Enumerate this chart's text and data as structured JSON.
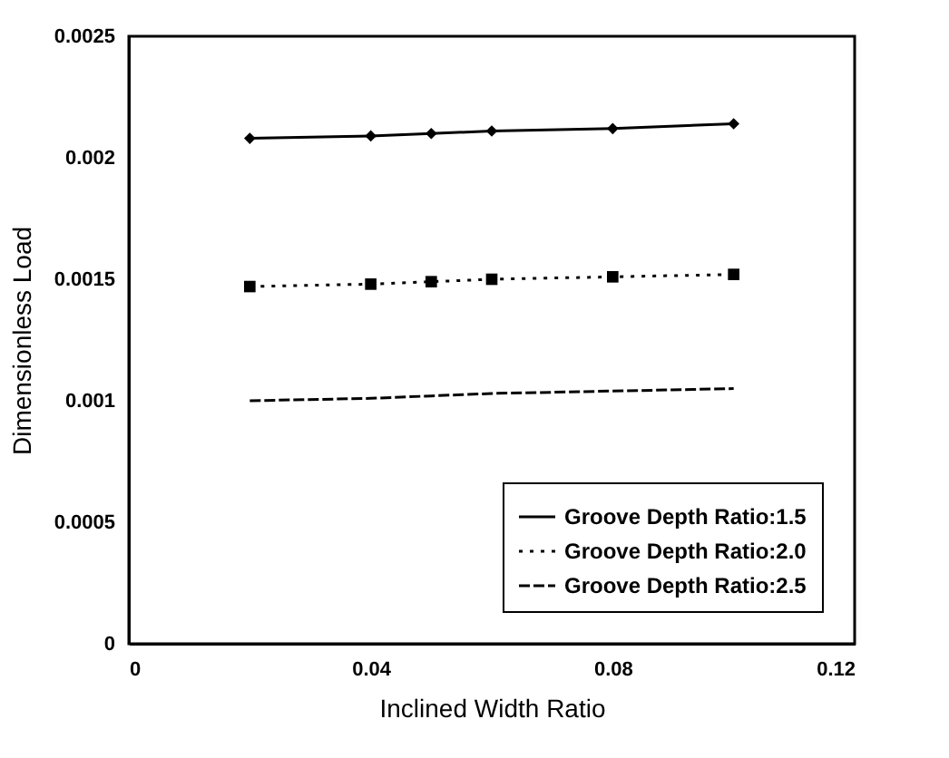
{
  "chart_data": {
    "type": "line",
    "xlabel": "Inclined Width Ratio",
    "ylabel": "Dimensionless Load",
    "x": [
      0.02,
      0.04,
      0.05,
      0.06,
      0.08,
      0.1
    ],
    "series": [
      {
        "name": "Groove Depth Ratio:1.5",
        "color": "#000000",
        "marker": "diamond",
        "line_style": "solid",
        "values": [
          0.00208,
          0.00209,
          0.0021,
          0.00211,
          0.00212,
          0.00214
        ]
      },
      {
        "name": "Groove Depth Ratio:2.0",
        "color": "#000000",
        "marker": "square",
        "line_style": "dotted",
        "values": [
          0.00147,
          0.00148,
          0.00149,
          0.0015,
          0.00151,
          0.00152
        ]
      },
      {
        "name": "Groove Depth Ratio:2.5",
        "color": "#000000",
        "marker": "none",
        "line_style": "dashed",
        "values": [
          0.001,
          0.00101,
          0.00102,
          0.00103,
          0.00104,
          0.00105
        ]
      }
    ],
    "xlim": [
      0,
      0.12
    ],
    "xticks": [
      0,
      0.04,
      0.08,
      0.12
    ],
    "ylim": [
      0,
      0.0025
    ],
    "yticks": [
      0,
      0.0005,
      0.001,
      0.0015,
      0.002,
      0.0025
    ],
    "grid": false,
    "legend": "bottom right"
  }
}
